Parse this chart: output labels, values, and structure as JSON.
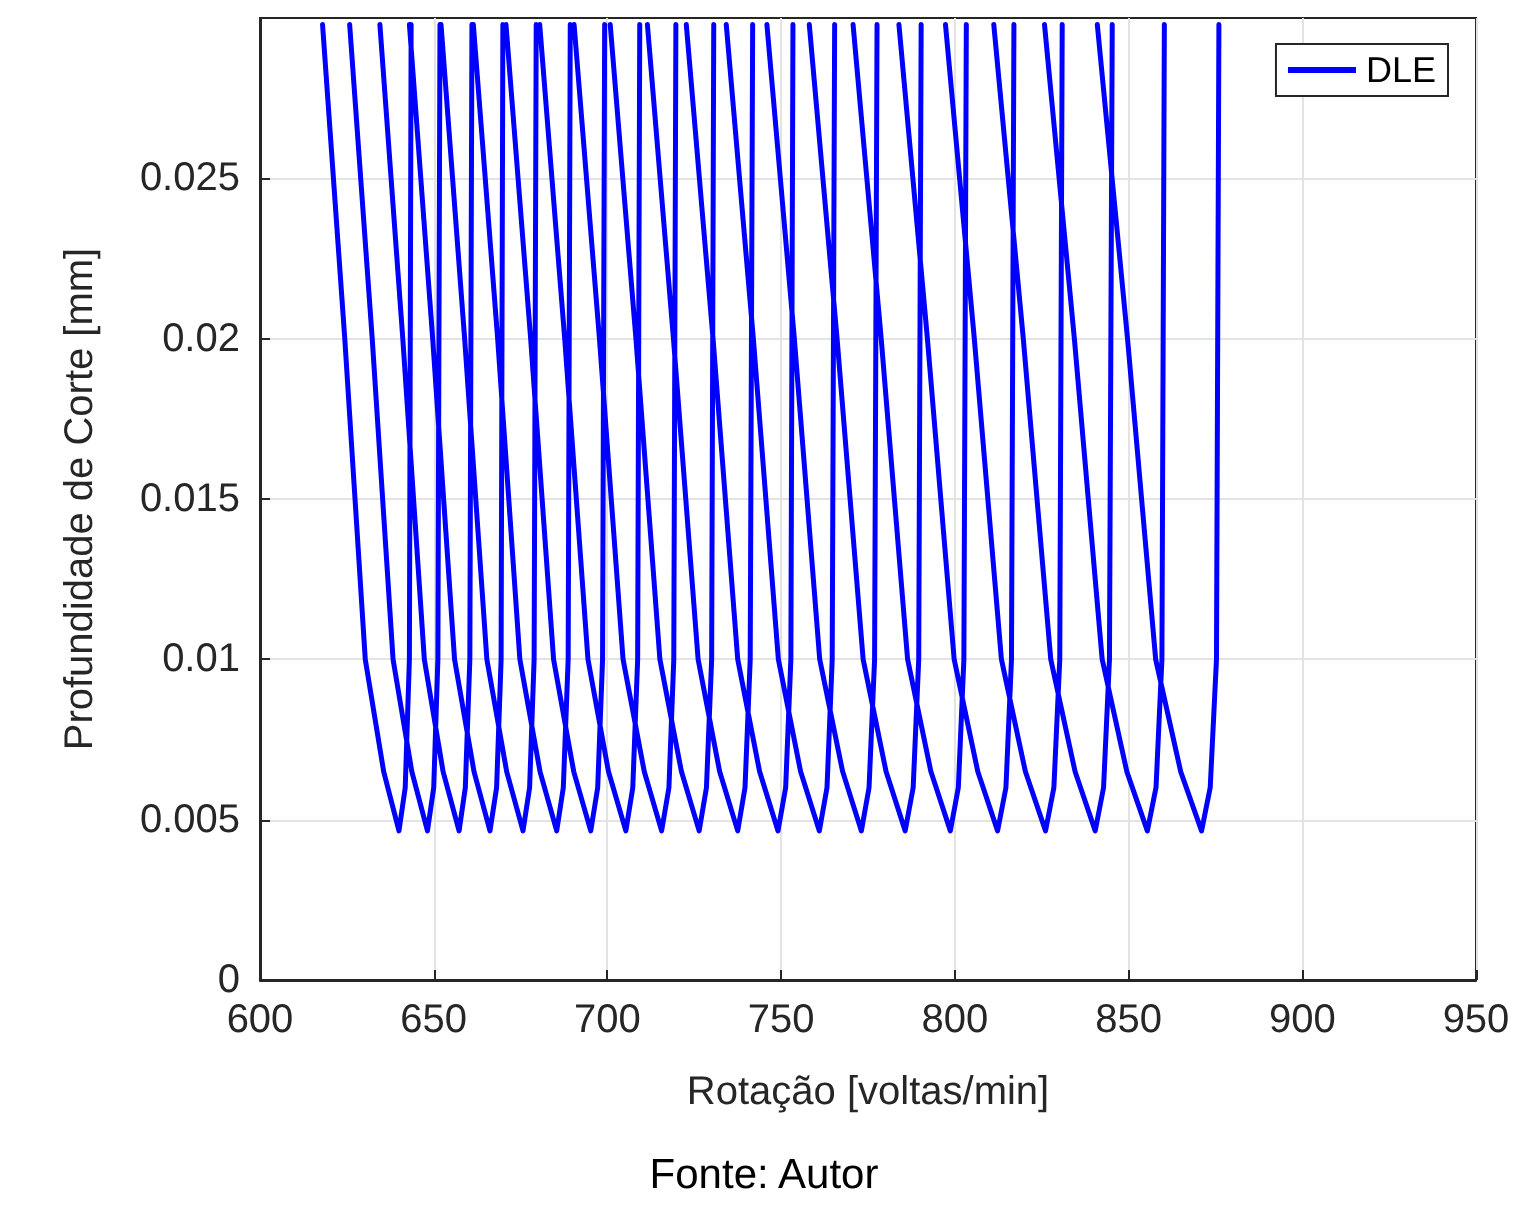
{
  "chart_data": {
    "type": "line",
    "xlabel": "Rotação [voltas/min]",
    "ylabel": "Profundidade de Corte [mm]",
    "annotations": [
      "Fonte: Autor"
    ],
    "xlim": [
      600,
      950
    ],
    "xticks": [
      600,
      650,
      700,
      750,
      800,
      850,
      900,
      950
    ],
    "ylim": [
      0,
      0.03
    ],
    "yticks": [
      0,
      0.005,
      0.01,
      0.015,
      0.02,
      0.025
    ],
    "grid": true,
    "legend": "top right",
    "marker": "none",
    "line_style": "solid",
    "series": [
      {
        "name": "DLE",
        "color": "#0000ff",
        "x": [
          618.0,
          624.4,
          630.3,
          635.6,
          640.0,
          641.8,
          643.0,
          643.5,
          null,
          625.8,
          632.3,
          638.3,
          643.7,
          648.2,
          650.0,
          651.2,
          651.8,
          null,
          634.5,
          641.1,
          647.3,
          652.7,
          657.3,
          659.1,
          660.4,
          661.0,
          null,
          643.0,
          649.7,
          656.0,
          661.6,
          666.2,
          668.1,
          669.4,
          669.9,
          null,
          652.1,
          658.9,
          665.3,
          671.0,
          675.7,
          677.6,
          678.9,
          679.5,
          null,
          661.4,
          668.4,
          674.8,
          680.6,
          685.4,
          687.3,
          688.7,
          689.3,
          null,
          670.8,
          677.9,
          684.5,
          690.3,
          695.2,
          697.2,
          698.6,
          699.2,
          null,
          680.5,
          687.7,
          694.4,
          700.3,
          705.3,
          707.3,
          708.7,
          709.3,
          null,
          690.4,
          697.7,
          704.5,
          710.6,
          715.6,
          717.7,
          719.1,
          719.7,
          null,
          700.8,
          708.2,
          715.1,
          721.3,
          726.4,
          728.5,
          730.0,
          730.6,
          null,
          711.5,
          719.0,
          726.1,
          732.3,
          737.5,
          739.6,
          741.1,
          741.8,
          null,
          722.7,
          730.4,
          737.5,
          743.8,
          749.1,
          751.3,
          752.8,
          753.4,
          null,
          734.2,
          742.0,
          749.2,
          755.6,
          761.0,
          763.2,
          764.7,
          765.4,
          null,
          745.9,
          753.8,
          761.1,
          767.7,
          773.1,
          775.3,
          776.9,
          777.6,
          null,
          758.1,
          766.1,
          773.6,
          780.2,
          785.7,
          788.0,
          789.6,
          790.3,
          null,
          770.7,
          778.8,
          786.4,
          793.1,
          798.7,
          801.0,
          802.6,
          803.3,
          null,
          783.9,
          792.1,
          799.8,
          806.6,
          812.3,
          814.7,
          816.3,
          817.0,
          null,
          797.3,
          805.6,
          813.4,
          820.3,
          826.1,
          828.5,
          830.2,
          830.9,
          null,
          811.2,
          819.7,
          827.6,
          834.6,
          840.4,
          842.8,
          844.5,
          845.3,
          null,
          825.8,
          834.4,
          842.4,
          849.5,
          855.4,
          857.9,
          859.6,
          860.3,
          null,
          841.0,
          849.7,
          857.8,
          865.0,
          871.0,
          873.5,
          875.3,
          876.0
        ],
        "values": [
          0.0298,
          0.02,
          0.01,
          0.0065,
          0.00465,
          0.006,
          0.01,
          0.0298,
          null,
          0.0298,
          0.02,
          0.01,
          0.0065,
          0.00465,
          0.006,
          0.01,
          0.0298,
          null,
          0.0298,
          0.02,
          0.01,
          0.0065,
          0.00465,
          0.006,
          0.01,
          0.0298,
          null,
          0.0298,
          0.02,
          0.01,
          0.0065,
          0.00465,
          0.006,
          0.01,
          0.0298,
          null,
          0.0298,
          0.02,
          0.01,
          0.0065,
          0.00465,
          0.006,
          0.01,
          0.0298,
          null,
          0.0298,
          0.02,
          0.01,
          0.0065,
          0.00465,
          0.006,
          0.01,
          0.0298,
          null,
          0.0298,
          0.02,
          0.01,
          0.0065,
          0.00465,
          0.006,
          0.01,
          0.0298,
          null,
          0.0298,
          0.02,
          0.01,
          0.0065,
          0.00465,
          0.006,
          0.01,
          0.0298,
          null,
          0.0298,
          0.02,
          0.01,
          0.0065,
          0.00465,
          0.006,
          0.01,
          0.0298,
          null,
          0.0298,
          0.02,
          0.01,
          0.0065,
          0.00465,
          0.006,
          0.01,
          0.0298,
          null,
          0.0298,
          0.02,
          0.01,
          0.0065,
          0.00465,
          0.006,
          0.01,
          0.0298,
          null,
          0.0298,
          0.02,
          0.01,
          0.0065,
          0.00465,
          0.006,
          0.01,
          0.0298,
          null,
          0.0298,
          0.02,
          0.01,
          0.0065,
          0.00465,
          0.006,
          0.01,
          0.0298,
          null,
          0.0298,
          0.02,
          0.01,
          0.0065,
          0.00465,
          0.006,
          0.01,
          0.0298,
          null,
          0.0298,
          0.02,
          0.01,
          0.0065,
          0.00465,
          0.006,
          0.01,
          0.0298,
          null,
          0.0298,
          0.02,
          0.01,
          0.0065,
          0.00465,
          0.006,
          0.01,
          0.0298,
          null,
          0.0298,
          0.02,
          0.01,
          0.0065,
          0.00465,
          0.006,
          0.01,
          0.0298,
          null,
          0.0298,
          0.02,
          0.01,
          0.0065,
          0.00465,
          0.006,
          0.01,
          0.0298,
          null,
          0.0298,
          0.02,
          0.01,
          0.0065,
          0.00465,
          0.006,
          0.01,
          0.0298,
          null,
          0.0298,
          0.02,
          0.01,
          0.0065,
          0.00465,
          0.006,
          0.01,
          0.0298,
          null,
          0.0298,
          0.02,
          0.01,
          0.0065,
          0.00465,
          0.006,
          0.01,
          0.0298
        ]
      }
    ]
  }
}
